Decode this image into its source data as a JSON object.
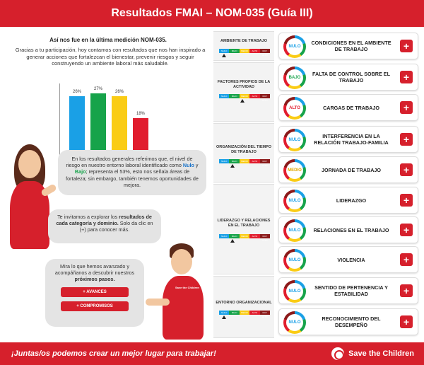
{
  "header": {
    "title": "Resultados FMAI – NOM-035 (Guía III)"
  },
  "intro": {
    "title": "Así nos fue en la última medición NOM-035.",
    "text": "Gracias a tu participación, hoy contamos con resultados que nos han inspirado a generar acciones que fortalezcan el bienestar, prevenir riesgos y seguir construyendo un ambiente laboral más saludable."
  },
  "chart_data": {
    "type": "bar",
    "categories": [
      "Nulo",
      "Bajo",
      "Medio",
      "Alto",
      "Muy alto"
    ],
    "values": [
      26,
      27,
      26,
      18,
      3
    ],
    "value_labels": [
      "26%",
      "27%",
      "26%",
      "18%",
      "3%"
    ],
    "colors": [
      "#1aa0e6",
      "#16a34a",
      "#facc15",
      "#e11d2e",
      "#a3342f"
    ],
    "ylim": [
      0,
      30
    ],
    "legend_position": "bottom"
  },
  "bubbles": {
    "b1_a": "En los resultados generales referimos que, el nivel de riesgo en nuestro entorno laboral identificado como ",
    "b1_nulo": "Nulo",
    "b1_y": " y ",
    "b1_bajo": "Bajo",
    "b1_b": "; representa el 53%, esto nos señala áreas de fortaleza; sin embargo, también tenemos oportunidades de mejora.",
    "b2_a": "Te invitamos a explorar los ",
    "b2_b": "resultados de cada categoría y dominio.",
    "b2_c": " Solo da clic en (+) para conocer más.",
    "b3_a": "Mira lo que hemos avanzado y acompáñanos a descubrir nuestros ",
    "b3_b": "próximos pasos.",
    "btn_avances": "+ AVANCES",
    "btn_compromisos": "+ COMPROMISOS"
  },
  "shirt_text": "Save the Children",
  "scale_labels": [
    "NULO",
    "BAJO",
    "MEDIO",
    "ALTO",
    "MUY ALTO"
  ],
  "scale_colors": [
    "#1aa0e6",
    "#16a34a",
    "#facc15",
    "#e11d2e",
    "#8b1a1a"
  ],
  "categories": [
    {
      "title": "Ambiente de trabajo",
      "level_index": 0
    },
    {
      "title": "Factores propios de la actividad",
      "level_index": 1
    },
    {
      "title": "Organización del tiempo de trabajo",
      "level_index": 1
    },
    {
      "title": "Liderazgo y relaciones en el trabajo",
      "level_index": 1
    },
    {
      "title": "Entorno organizacional",
      "level_index": 0
    }
  ],
  "domains": [
    {
      "name": "Condiciones en el ambiente de trabajo",
      "level": "NULO",
      "color": "#1aa0e6"
    },
    {
      "name": "Falta de control sobre el trabajo",
      "level": "BAJO",
      "color": "#16a34a"
    },
    {
      "name": "Cargas de trabajo",
      "level": "ALTO",
      "color": "#e11d2e"
    },
    {
      "name": "Interferencia en la relación trabajo-familia",
      "level": "NULO",
      "color": "#1aa0e6"
    },
    {
      "name": "Jornada de trabajo",
      "level": "MEDIO",
      "color": "#e0a800"
    },
    {
      "name": "Liderazgo",
      "level": "NULO",
      "color": "#1aa0e6"
    },
    {
      "name": "Relaciones en el trabajo",
      "level": "NULO",
      "color": "#1aa0e6"
    },
    {
      "name": "Violencia",
      "level": "NULO",
      "color": "#1aa0e6"
    },
    {
      "name": "Sentido de pertenencia y estabilidad",
      "level": "NULO",
      "color": "#1aa0e6"
    },
    {
      "name": "Reconocimiento del desempeño",
      "level": "NULO",
      "color": "#1aa0e6"
    }
  ],
  "plus_label": "+",
  "footer": {
    "slogan": "¡Juntas/os podemos crear un mejor lugar para trabajar!",
    "brand": "Save the Children"
  }
}
